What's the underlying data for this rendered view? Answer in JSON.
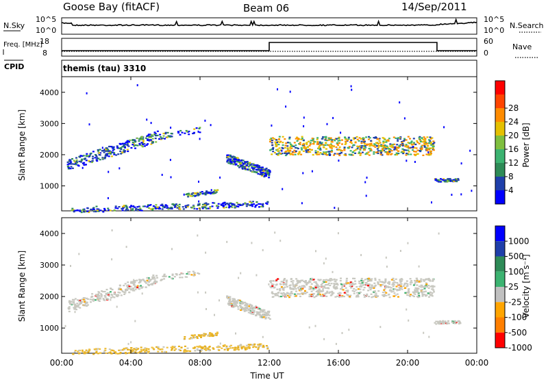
{
  "header": {
    "station": "Goose Bay (fitACF)",
    "beam": "Beam 06",
    "date": "14/Sep/2011"
  },
  "colors": {
    "power_scale": [
      "#0000ff",
      "#1f3faa",
      "#2e8b57",
      "#3cb371",
      "#7fbf3f",
      "#e5c000",
      "#ff8c00",
      "#ff4500",
      "#ff0000"
    ],
    "velocity_scale": [
      "#0000ff",
      "#1f3faa",
      "#2e8b57",
      "#3cb371",
      "#c0c0c0",
      "#ffa500",
      "#ff7f00",
      "#ff0000"
    ]
  },
  "chart_data": [
    {
      "type": "line",
      "panel": "noise",
      "left_label": "N.Sky",
      "right_label": "N.Search",
      "left_ticks": [
        "10^5",
        "10^0"
      ],
      "right_ticks": [
        "10^5",
        "10^0"
      ]
    },
    {
      "type": "line",
      "panel": "frequency",
      "left_label": "Freq. [MHz]",
      "right_label": "Nave",
      "left_ticks": [
        "18",
        "8"
      ],
      "right_ticks": [
        "60",
        "0"
      ],
      "cpid_label": "CPID",
      "cpid_value": "themis (tau) 3310"
    },
    {
      "type": "heatmap",
      "panel": "power",
      "ylabel": "Slant Range [km]",
      "yticks": [
        1000,
        2000,
        3000,
        4000
      ],
      "ylim": [
        200,
        4500
      ],
      "colorbar_label": "Power [dB]",
      "colorbar_ticks": [
        4,
        8,
        12,
        16,
        20,
        24,
        28
      ]
    },
    {
      "type": "heatmap",
      "panel": "velocity",
      "ylabel": "Slant Range [km]",
      "yticks": [
        1000,
        2000,
        3000,
        4000
      ],
      "ylim": [
        200,
        4500
      ],
      "colorbar_label": "Velocity [m s⁻¹]",
      "colorbar_ticks": [
        1000,
        500,
        100,
        25,
        -25,
        -100,
        -500,
        -1000
      ],
      "xlabel": "Time UT",
      "xticks": [
        "00:00",
        "04:00",
        "08:00",
        "12:00",
        "16:00",
        "20:00",
        "00:00"
      ]
    }
  ]
}
